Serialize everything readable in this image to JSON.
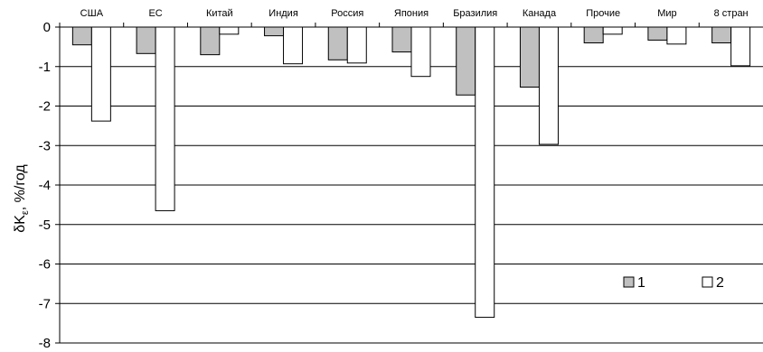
{
  "chart_data": {
    "type": "bar",
    "ylabel_main": "δK",
    "ylabel_sub": "ε",
    "ylabel_tail": ", %/год",
    "categories": [
      "США",
      "ЕС",
      "Китай",
      "Индия",
      "Россия",
      "Япония",
      "Бразилия",
      "Канада",
      "Прочие",
      "Мир",
      "8 стран"
    ],
    "series": [
      {
        "name": "1",
        "color": "#c0c0c0",
        "values": [
          -0.45,
          -0.67,
          -0.7,
          -0.22,
          -0.83,
          -0.63,
          -1.72,
          -1.52,
          -0.4,
          -0.33,
          -0.4
        ]
      },
      {
        "name": "2",
        "color": "#ffffff",
        "values": [
          -2.38,
          -4.65,
          -0.18,
          -0.93,
          -0.91,
          -1.25,
          -7.35,
          -2.97,
          -0.18,
          -0.43,
          -0.98
        ]
      }
    ],
    "ylim": [
      -8,
      0
    ],
    "yticks": [
      "0",
      "-1",
      "-2",
      "-3",
      "-4",
      "-5",
      "-6",
      "-7",
      "-8"
    ],
    "grid": true,
    "legend_position": "bottom-right",
    "category_axis_position": "top"
  }
}
